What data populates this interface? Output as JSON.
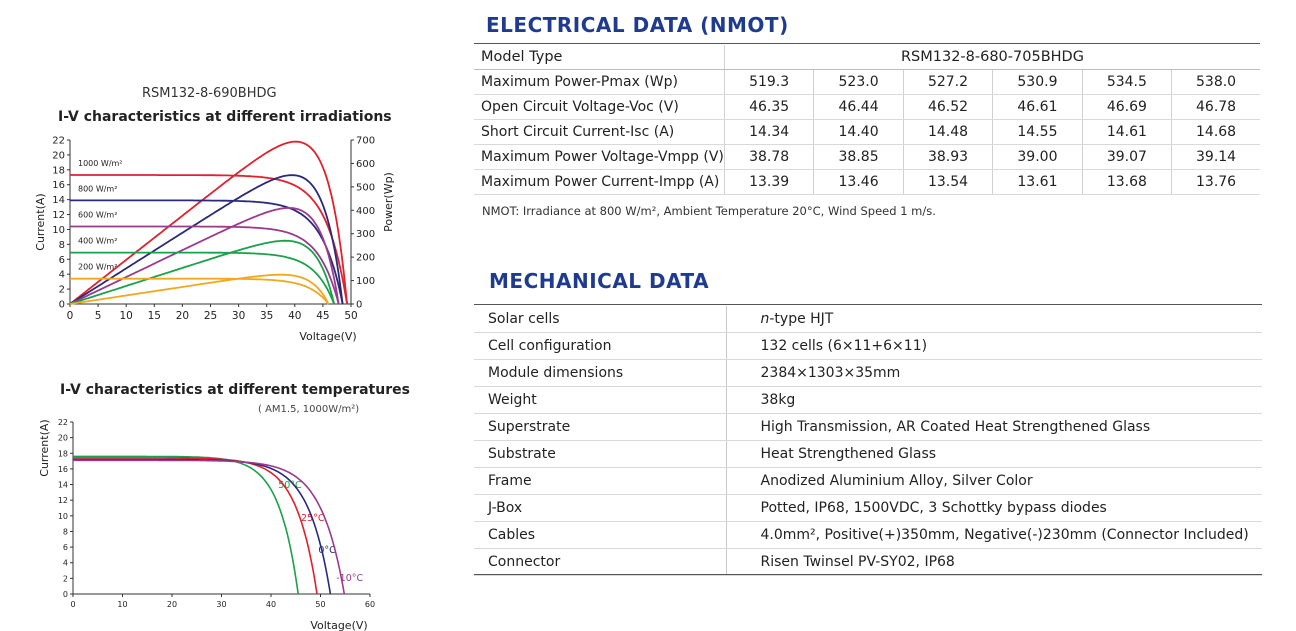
{
  "electrical": {
    "title": "ELECTRICAL DATA (NMOT)",
    "model_type_label": "Model Type",
    "model_type_value": "RSM132-8-680-705BHDG",
    "rows": [
      {
        "label": "Maximum Power-Pmax (Wp)",
        "values": [
          "519.3",
          "523.0",
          "527.2",
          "530.9",
          "534.5",
          "538.0"
        ]
      },
      {
        "label": "Open Circuit Voltage-Voc (V)",
        "values": [
          "46.35",
          "46.44",
          "46.52",
          "46.61",
          "46.69",
          "46.78"
        ]
      },
      {
        "label": "Short Circuit Current-Isc (A)",
        "values": [
          "14.34",
          "14.40",
          "14.48",
          "14.55",
          "14.61",
          "14.68"
        ]
      },
      {
        "label": "Maximum Power Voltage-Vmpp (V)",
        "values": [
          "38.78",
          "38.85",
          "38.93",
          "39.00",
          "39.07",
          "39.14"
        ]
      },
      {
        "label": "Maximum Power Current-Impp (A)",
        "values": [
          "13.39",
          "13.46",
          "13.54",
          "13.61",
          "13.68",
          "13.76"
        ]
      }
    ],
    "note": "NMOT: Irradiance at 800 W/m², Ambient Temperature 20°C, Wind Speed 1 m/s."
  },
  "mechanical": {
    "title": "MECHANICAL DATA",
    "rows": [
      {
        "label": "Solar cells",
        "value": "n-type HJT"
      },
      {
        "label": "Cell configuration",
        "value": "132 cells (6×11+6×11)"
      },
      {
        "label": "Module dimensions",
        "value": "2384×1303×35mm"
      },
      {
        "label": "Weight",
        "value": "38kg"
      },
      {
        "label": "Superstrate",
        "value": "High Transmission, AR Coated Heat Strengthened Glass"
      },
      {
        "label": "Substrate",
        "value": "Heat Strengthened Glass"
      },
      {
        "label": "Frame",
        "value": "Anodized Aluminium Alloy, Silver Color"
      },
      {
        "label": "J-Box",
        "value": "Potted, IP68, 1500VDC, 3 Schottky bypass diodes"
      },
      {
        "label": "Cables",
        "value": "4.0mm², Positive(+)350mm, Negative(-)230mm (Connector Included)"
      },
      {
        "label": "Connector",
        "value": "Risen Twinsel PV-SY02, IP68"
      }
    ]
  },
  "model_label": "RSM132-8-690BHDG",
  "colors": {
    "title_blue": "#1f3b8f",
    "red": "#e0202e",
    "navy": "#2a2a7a",
    "purple": "#9b3a8c",
    "green": "#1aa14a",
    "orange": "#f0a81e"
  },
  "chart_data": [
    {
      "type": "line",
      "title": "I-V characteristics at different irradiations",
      "xlabel": "Voltage(V)",
      "ylabel": "Current(A)",
      "y2label": "Power(Wp)",
      "xlim": [
        0,
        50
      ],
      "ylim": [
        0,
        22
      ],
      "y2lim": [
        0,
        700
      ],
      "xticks": [
        "0",
        "5",
        "10",
        "15",
        "20",
        "25",
        "30",
        "35",
        "40",
        "45",
        "50"
      ],
      "yticks": [
        "0",
        "2",
        "4",
        "6",
        "8",
        "10",
        "12",
        "14",
        "16",
        "18",
        "20",
        "22"
      ],
      "y2ticks": [
        "0",
        "100",
        "200",
        "300",
        "400",
        "500",
        "600",
        "700"
      ],
      "series": [
        {
          "name": "1000 W/m²",
          "color": "#e0202e",
          "isc": 17.3,
          "voc": 49.3,
          "pmax": 693,
          "vmp": 40.5
        },
        {
          "name": "800 W/m²",
          "color": "#2a2a7a",
          "isc": 13.9,
          "voc": 48.5,
          "pmax": 550,
          "vmp": 40.5
        },
        {
          "name": "600 W/m²",
          "color": "#9b3a8c",
          "isc": 10.4,
          "voc": 47.8,
          "pmax": 410,
          "vmp": 40.2
        },
        {
          "name": "400 W/m²",
          "color": "#1aa14a",
          "isc": 6.9,
          "voc": 47.0,
          "pmax": 270,
          "vmp": 40.0
        },
        {
          "name": "200 W/m²",
          "color": "#f0a81e",
          "isc": 3.4,
          "voc": 46.0,
          "pmax": 125,
          "vmp": 39.6
        }
      ]
    },
    {
      "type": "line",
      "title": "I-V characteristics at different temperatures",
      "subtitle": "( AM1.5,  1000W/m²)",
      "xlabel": "Voltage(V)",
      "ylabel": "Current(A)",
      "xlim": [
        0,
        60
      ],
      "ylim": [
        0,
        22
      ],
      "xticks": [
        "0",
        "10",
        "20",
        "30",
        "40",
        "50",
        "60"
      ],
      "yticks": [
        "0",
        "2",
        "4",
        "6",
        "8",
        "10",
        "12",
        "14",
        "16",
        "18",
        "20",
        "22"
      ],
      "series": [
        {
          "name": "50°C",
          "color": "#1aa14a",
          "isc": 17.6,
          "voc": 45.5,
          "knee": 34
        },
        {
          "name": "25°C",
          "color": "#e0202e",
          "isc": 17.4,
          "voc": 49.3,
          "knee": 37
        },
        {
          "name": "0°C",
          "color": "#2a2a7a",
          "isc": 17.2,
          "voc": 52.0,
          "knee": 39
        },
        {
          "name": "-10°C",
          "color": "#9b3a8c",
          "isc": 17.1,
          "voc": 54.8,
          "knee": 41
        }
      ]
    }
  ]
}
